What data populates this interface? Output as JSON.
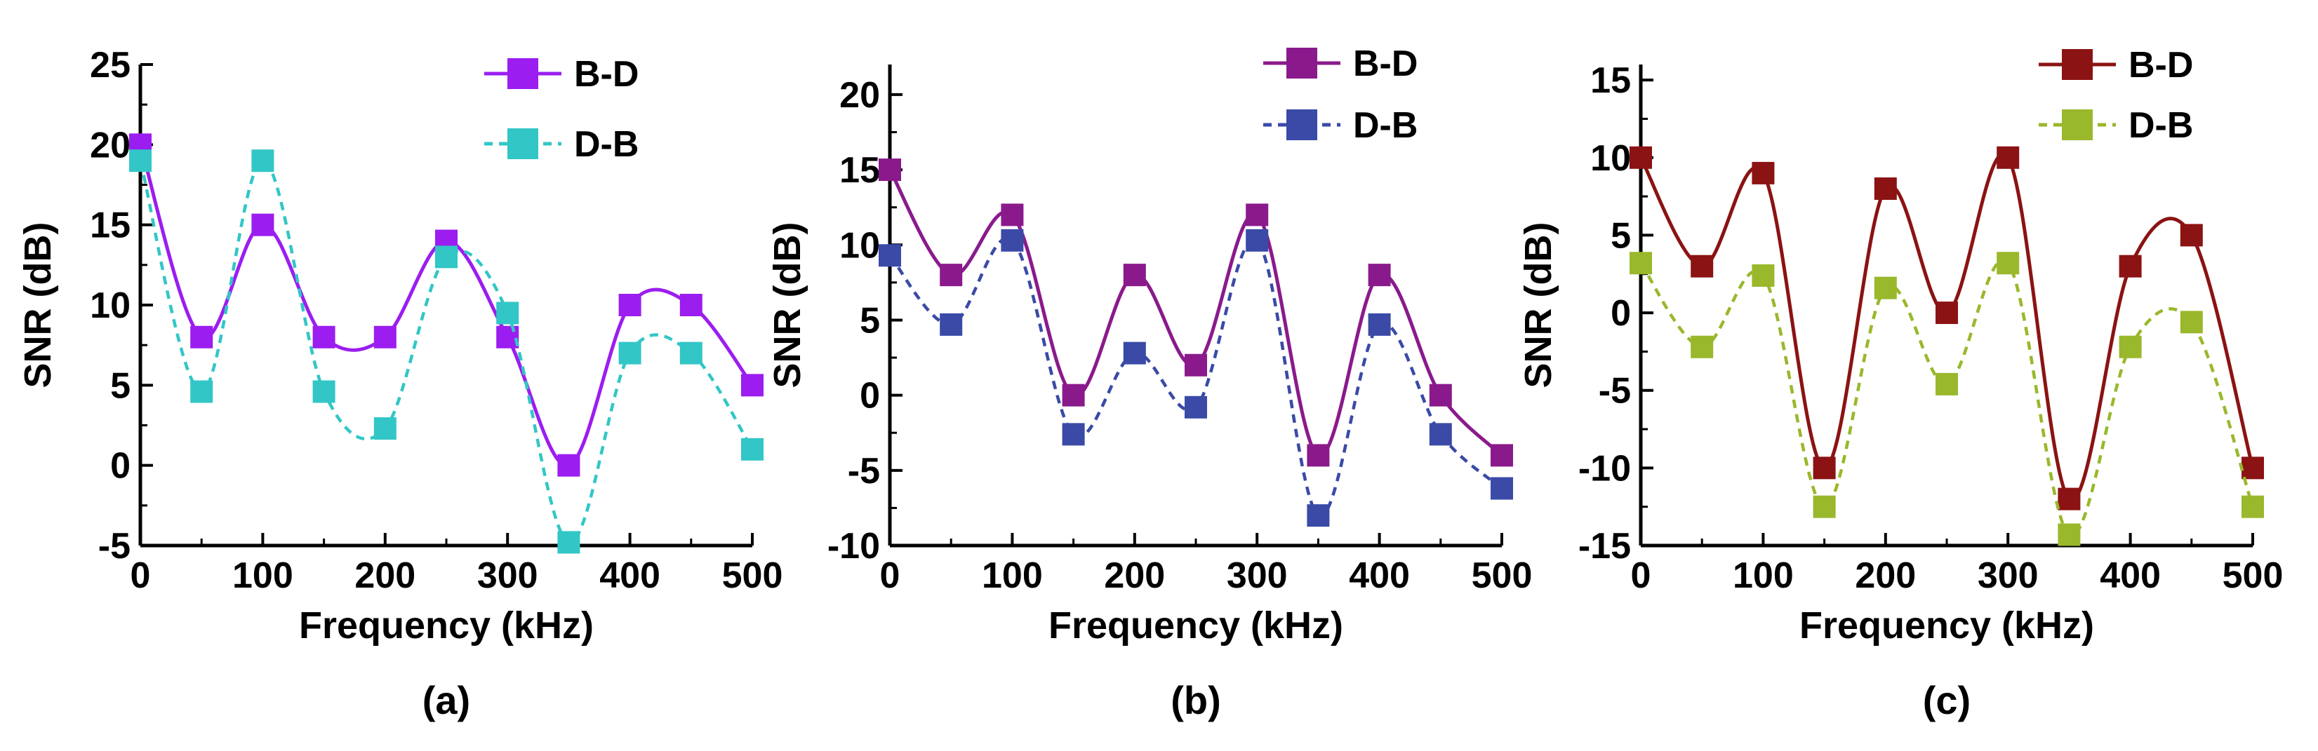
{
  "chart_data": [
    {
      "type": "line",
      "panel_label": "(a)",
      "xlabel": "Frequency (kHz)",
      "ylabel": "SNR (dB)",
      "xlim": [
        0,
        500
      ],
      "ylim": [
        -5,
        25
      ],
      "x_ticks": [
        0,
        100,
        200,
        300,
        400,
        500
      ],
      "y_ticks": [
        -5,
        0,
        5,
        10,
        15,
        20,
        25
      ],
      "legend_position": "top-right",
      "series": [
        {
          "name": "B-D",
          "color": "#9b1df0",
          "line": "solid",
          "x": [
            0,
            50,
            100,
            150,
            200,
            250,
            300,
            350,
            400,
            450,
            500
          ],
          "values": [
            20,
            8,
            15,
            8,
            8,
            14,
            8,
            0,
            10,
            10,
            5
          ]
        },
        {
          "name": "D-B",
          "color": "#33c6c6",
          "line": "dashed",
          "x": [
            0,
            50,
            100,
            150,
            200,
            250,
            300,
            350,
            400,
            450,
            500
          ],
          "values": [
            19,
            4.6,
            19,
            4.6,
            2.3,
            13,
            9.5,
            -4.8,
            7,
            7,
            1
          ]
        }
      ]
    },
    {
      "type": "line",
      "panel_label": "(b)",
      "xlabel": "Frequency (kHz)",
      "ylabel": "SNR (dB)",
      "xlim": [
        0,
        500
      ],
      "ylim": [
        -10,
        22
      ],
      "x_ticks": [
        0,
        100,
        200,
        300,
        400,
        500
      ],
      "y_ticks": [
        -10,
        -5,
        0,
        5,
        10,
        15,
        20
      ],
      "legend_position": "top-right",
      "series": [
        {
          "name": "B-D",
          "color": "#8a1a8c",
          "line": "solid",
          "x": [
            0,
            50,
            100,
            150,
            200,
            250,
            300,
            350,
            400,
            450,
            500
          ],
          "values": [
            15,
            8,
            12,
            0,
            8,
            2,
            12,
            -4,
            8,
            0,
            -4
          ]
        },
        {
          "name": "D-B",
          "color": "#3a4aa6",
          "line": "dashed",
          "x": [
            0,
            50,
            100,
            150,
            200,
            250,
            300,
            350,
            400,
            450,
            500
          ],
          "values": [
            9.3,
            4.7,
            10.3,
            -2.6,
            2.8,
            -0.8,
            10.3,
            -8,
            4.7,
            -2.6,
            -6.2
          ]
        }
      ]
    },
    {
      "type": "line",
      "panel_label": "(c)",
      "xlabel": "Frequency (kHz)",
      "ylabel": "SNR (dB)",
      "xlim": [
        0,
        500
      ],
      "ylim": [
        -15,
        16
      ],
      "x_ticks": [
        0,
        100,
        200,
        300,
        400,
        500
      ],
      "y_ticks": [
        -15,
        -10,
        -5,
        0,
        5,
        10,
        15
      ],
      "legend_position": "top-right",
      "series": [
        {
          "name": "B-D",
          "color": "#8b1313",
          "line": "solid",
          "x": [
            0,
            50,
            100,
            150,
            200,
            250,
            300,
            350,
            400,
            450,
            500
          ],
          "values": [
            10,
            3,
            9,
            -10,
            8,
            0,
            10,
            -12,
            3,
            5,
            -10
          ]
        },
        {
          "name": "D-B",
          "color": "#99b82c",
          "line": "dashed",
          "x": [
            0,
            50,
            100,
            150,
            200,
            250,
            300,
            350,
            400,
            450,
            500
          ],
          "values": [
            3.2,
            -2.2,
            2.4,
            -12.5,
            1.6,
            -4.6,
            3.2,
            -14.3,
            -2.2,
            -0.6,
            -12.5
          ]
        }
      ]
    }
  ]
}
